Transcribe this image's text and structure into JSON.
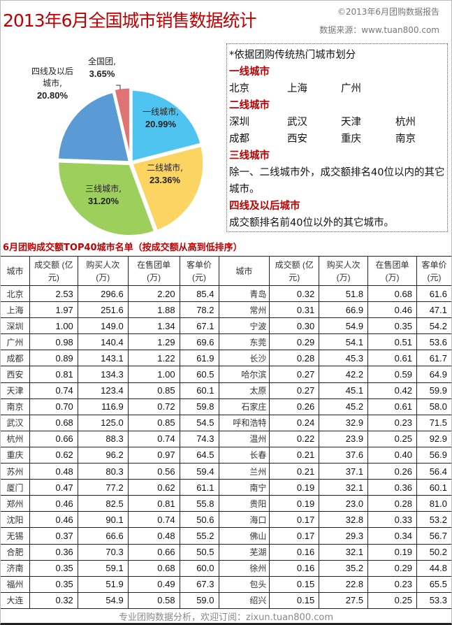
{
  "header": {
    "title": "2013年6月全国城市销售数据统计",
    "copyright": "©2013年6月团购数据报告",
    "source": "数据来源：www.tuan800.com"
  },
  "chart_data": {
    "type": "pie",
    "slices": [
      {
        "label": "一线城市,",
        "value": 20.99,
        "text": "20.99%",
        "color": "#4fc4f0"
      },
      {
        "label": "二线城市,",
        "value": 23.36,
        "text": "23.36%",
        "color": "#fcd462"
      },
      {
        "label": "三线城市,",
        "value": 31.2,
        "text": "31.20%",
        "color": "#9dcf5c"
      },
      {
        "label": "四线及以后城市,",
        "value": 20.8,
        "text": "20.80%",
        "color": "#5b9bd5"
      },
      {
        "label": "全国团,",
        "value": 3.65,
        "text": "3.65%",
        "color": "#e07474"
      }
    ]
  },
  "legend_box": {
    "note": "*依据团购传统热门城市划分",
    "tier1_title": "一线城市",
    "tier1": [
      "北京",
      "上海",
      "广州"
    ],
    "tier2_title": "二线城市",
    "tier2": [
      "深圳",
      "武汉",
      "天津",
      "杭州",
      "成都",
      "西安",
      "重庆",
      "南京"
    ],
    "tier3_title": "三线城市",
    "tier3_desc": "除一、二线城市外，成交额排名40位以内的其它城市。",
    "tier4_title": "四线及以后城市",
    "tier4_desc": "成交额排名前40位以外的其它城市。"
  },
  "table": {
    "title": "6月团购成交额TOP40城市名单（按成交额从高到低排序）",
    "headers": [
      "城市",
      "成交额 (亿元)",
      "购买人次 (万)",
      "在售团单 (万)",
      "客单价 (元)",
      "城市",
      "成交额 (亿元)",
      "购买人次 (万)",
      "在售团单 (万)",
      "客单价 (元)"
    ],
    "rows": [
      [
        "北京",
        "2.53",
        "296.6",
        "2.20",
        "85.4",
        "青岛",
        "0.32",
        "51.8",
        "0.68",
        "61.6"
      ],
      [
        "上海",
        "1.97",
        "251.6",
        "1.88",
        "78.2",
        "常州",
        "0.31",
        "66.9",
        "0.46",
        "47.1"
      ],
      [
        "深圳",
        "1.00",
        "149.0",
        "1.34",
        "67.1",
        "宁波",
        "0.30",
        "54.9",
        "0.35",
        "54.2"
      ],
      [
        "广州",
        "0.98",
        "140.4",
        "1.29",
        "69.6",
        "东莞",
        "0.29",
        "54.1",
        "0.51",
        "53.6"
      ],
      [
        "成都",
        "0.89",
        "143.1",
        "1.22",
        "61.9",
        "长沙",
        "0.28",
        "45.3",
        "0.61",
        "61.7"
      ],
      [
        "西安",
        "0.81",
        "134.3",
        "1.00",
        "60.5",
        "哈尔滨",
        "0.27",
        "42.2",
        "0.59",
        "64.9"
      ],
      [
        "天津",
        "0.74",
        "123.4",
        "0.85",
        "60.1",
        "太原",
        "0.27",
        "45.1",
        "0.42",
        "59.9"
      ],
      [
        "南京",
        "0.70",
        "116.9",
        "0.72",
        "59.8",
        "石家庄",
        "0.26",
        "45.2",
        "0.61",
        "58.0"
      ],
      [
        "武汉",
        "0.68",
        "125.0",
        "0.85",
        "54.5",
        "呼和浩特",
        "0.24",
        "32.9",
        "0.23",
        "71.5"
      ],
      [
        "杭州",
        "0.66",
        "88.3",
        "0.74",
        "74.3",
        "温州",
        "0.22",
        "23.9",
        "0.25",
        "92.9"
      ],
      [
        "重庆",
        "0.62",
        "96.2",
        "0.97",
        "64.5",
        "长春",
        "0.21",
        "37.6",
        "0.40",
        "56.9"
      ],
      [
        "苏州",
        "0.48",
        "80.3",
        "0.56",
        "59.4",
        "兰州",
        "0.21",
        "37.1",
        "0.26",
        "56.4"
      ],
      [
        "厦门",
        "0.47",
        "77.2",
        "0.62",
        "61.1",
        "南宁",
        "0.19",
        "32.1",
        "0.36",
        "60.1"
      ],
      [
        "郑州",
        "0.46",
        "82.5",
        "0.81",
        "55.8",
        "贵阳",
        "0.19",
        "23.0",
        "0.28",
        "81.0"
      ],
      [
        "沈阳",
        "0.46",
        "90.1",
        "0.74",
        "50.6",
        "海口",
        "0.17",
        "32.8",
        "0.33",
        "53.2"
      ],
      [
        "无锡",
        "0.37",
        "66.6",
        "0.48",
        "55.2",
        "佛山",
        "0.17",
        "29.3",
        "0.34",
        "56.7"
      ],
      [
        "合肥",
        "0.36",
        "70.3",
        "0.66",
        "50.5",
        "芜湖",
        "0.16",
        "32.1",
        "0.19",
        "50.2"
      ],
      [
        "济南",
        "0.35",
        "59.1",
        "0.68",
        "60.0",
        "徐州",
        "0.16",
        "35.2",
        "0.29",
        "44.8"
      ],
      [
        "福州",
        "0.35",
        "51.9",
        "0.49",
        "67.3",
        "包头",
        "0.15",
        "22.8",
        "0.23",
        "65.5"
      ],
      [
        "大连",
        "0.32",
        "54.9",
        "0.58",
        "59.0",
        "绍兴",
        "0.15",
        "27.5",
        "0.25",
        "53.3"
      ]
    ]
  },
  "footer": "专业团购数据分析，欢迎订阅：zixun.tuan800.com"
}
